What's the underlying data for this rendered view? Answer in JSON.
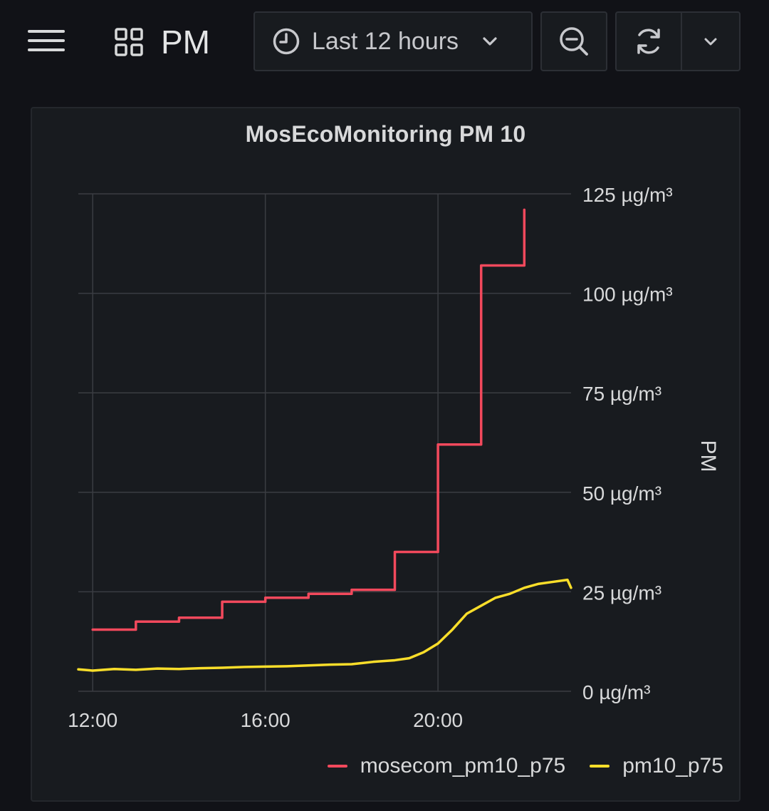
{
  "header": {
    "dashboard_title": "PM",
    "time_range_label": "Last 12 hours",
    "icons": {
      "menu": "hamburger-icon",
      "dashboard": "grid-icon",
      "clock": "clock-icon",
      "time_caret": "chevron-down-icon",
      "zoom_out": "zoom-out-icon",
      "refresh": "refresh-icon",
      "refresh_caret": "chevron-down-icon"
    }
  },
  "panel": {
    "title": "MosEcoMonitoring PM 10",
    "legend": [
      {
        "label": "mosecom_pm10_p75",
        "color": "#f2495c"
      },
      {
        "label": "pm10_p75",
        "color": "#fade2a"
      }
    ]
  },
  "chart_data": {
    "type": "line",
    "title": "MosEcoMonitoring PM 10",
    "ylabel": "PM",
    "y_unit": "µg/m³",
    "ylim": [
      0,
      125
    ],
    "yticks": [
      0,
      25,
      50,
      75,
      100,
      125
    ],
    "ytick_labels": [
      "0 µg/m³",
      "25 µg/m³",
      "50 µg/m³",
      "75 µg/m³",
      "100 µg/m³",
      "125 µg/m³"
    ],
    "y_axis_position": "right",
    "xlim": [
      "11:40",
      "23:05"
    ],
    "xticks": [
      "12:00",
      "16:00",
      "20:00"
    ],
    "grid": true,
    "legend_position": "bottom-right",
    "series": [
      {
        "name": "mosecom_pm10_p75",
        "color": "#f2495c",
        "step": true,
        "x": [
          "12:00",
          "13:00",
          "14:00",
          "15:00",
          "16:00",
          "17:00",
          "18:00",
          "19:00",
          "20:00",
          "21:00",
          "22:00"
        ],
        "y": [
          15.5,
          17.5,
          18.5,
          22.5,
          23.5,
          24.5,
          25.5,
          35,
          62,
          107,
          121
        ]
      },
      {
        "name": "pm10_p75",
        "color": "#fade2a",
        "step": false,
        "x": [
          "11:40",
          "12:00",
          "12:30",
          "13:00",
          "13:30",
          "14:00",
          "14:30",
          "15:00",
          "15:30",
          "16:00",
          "16:30",
          "17:00",
          "17:30",
          "18:00",
          "18:30",
          "19:00",
          "19:20",
          "19:40",
          "20:00",
          "20:20",
          "20:40",
          "21:00",
          "21:20",
          "21:40",
          "22:00",
          "22:20",
          "22:40",
          "23:00",
          "23:05"
        ],
        "y": [
          5.5,
          5.2,
          5.6,
          5.4,
          5.7,
          5.6,
          5.8,
          5.9,
          6.1,
          6.2,
          6.3,
          6.5,
          6.7,
          6.8,
          7.4,
          7.8,
          8.3,
          9.8,
          12,
          15.5,
          19.5,
          21.5,
          23.5,
          24.5,
          26,
          27,
          27.5,
          28,
          26
        ]
      }
    ]
  }
}
